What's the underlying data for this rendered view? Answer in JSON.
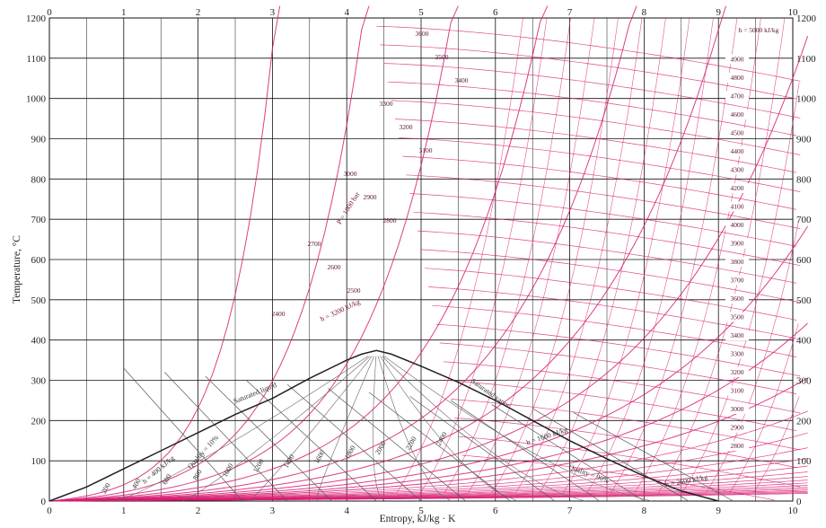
{
  "chart_data": {
    "type": "line",
    "title": "",
    "xlabel": "Entropy, kJ/kg · K",
    "ylabel": "Temperature, °C",
    "xlim": [
      0,
      10
    ],
    "ylim": [
      0,
      1200
    ],
    "x_ticks": [
      "0",
      "1",
      "2",
      "3",
      "4",
      "5",
      "6",
      "7",
      "8",
      "9",
      "10"
    ],
    "y_ticks": [
      "0",
      "100",
      "200",
      "300",
      "400",
      "500",
      "600",
      "700",
      "800",
      "900",
      "1000",
      "1100",
      "1200"
    ],
    "grid": true,
    "colors": {
      "grid": "#111111",
      "property_lines": "#d81b72",
      "dome": "#222222"
    },
    "saturation_dome": {
      "x": [
        0,
        0.5,
        1.0,
        1.5,
        2.0,
        2.5,
        3.0,
        3.5,
        4.0,
        4.2,
        4.4,
        4.6,
        5.0,
        5.5,
        6.0,
        6.5,
        7.0,
        7.5,
        8.0,
        8.5,
        9.0
      ],
      "y": [
        0,
        35,
        80,
        125,
        170,
        215,
        255,
        305,
        350,
        365,
        374,
        365,
        335,
        295,
        250,
        200,
        150,
        105,
        62,
        25,
        0
      ]
    },
    "dome_labels": {
      "liquid": "Saturated liquid",
      "vapor": "Saturated vapor"
    },
    "pressure_label": "P = 1000 bar",
    "enthalpy_label_top": "h = 5000 kJ/kg",
    "enthalpy_labels_right": [
      "5000",
      "4900",
      "4800",
      "4700",
      "4600",
      "4500",
      "4400",
      "4300",
      "4200",
      "4100",
      "4000",
      "3900",
      "3800",
      "3700",
      "3600",
      "3500",
      "3400",
      "3300",
      "3200",
      "3100",
      "3000",
      "2900",
      "2800",
      "2700"
    ],
    "enthalpy_labels_left": [
      "3600",
      "3500",
      "3400",
      "3300",
      "3200",
      "3100",
      "3000",
      "2900",
      "2800",
      "2700",
      "2600",
      "2500",
      "2400"
    ],
    "annotations": [
      "h = 3200 kJ/kg",
      "h = 1600 kJ/kg",
      "h = 2600 kJ/kg",
      "h = 400 kJ/kg",
      "Quality = 10%",
      "Quality = 90%",
      "200",
      "400",
      "600",
      "800",
      "1000",
      "1200",
      "1400",
      "1600",
      "1800",
      "2000",
      "2200",
      "2400"
    ]
  }
}
